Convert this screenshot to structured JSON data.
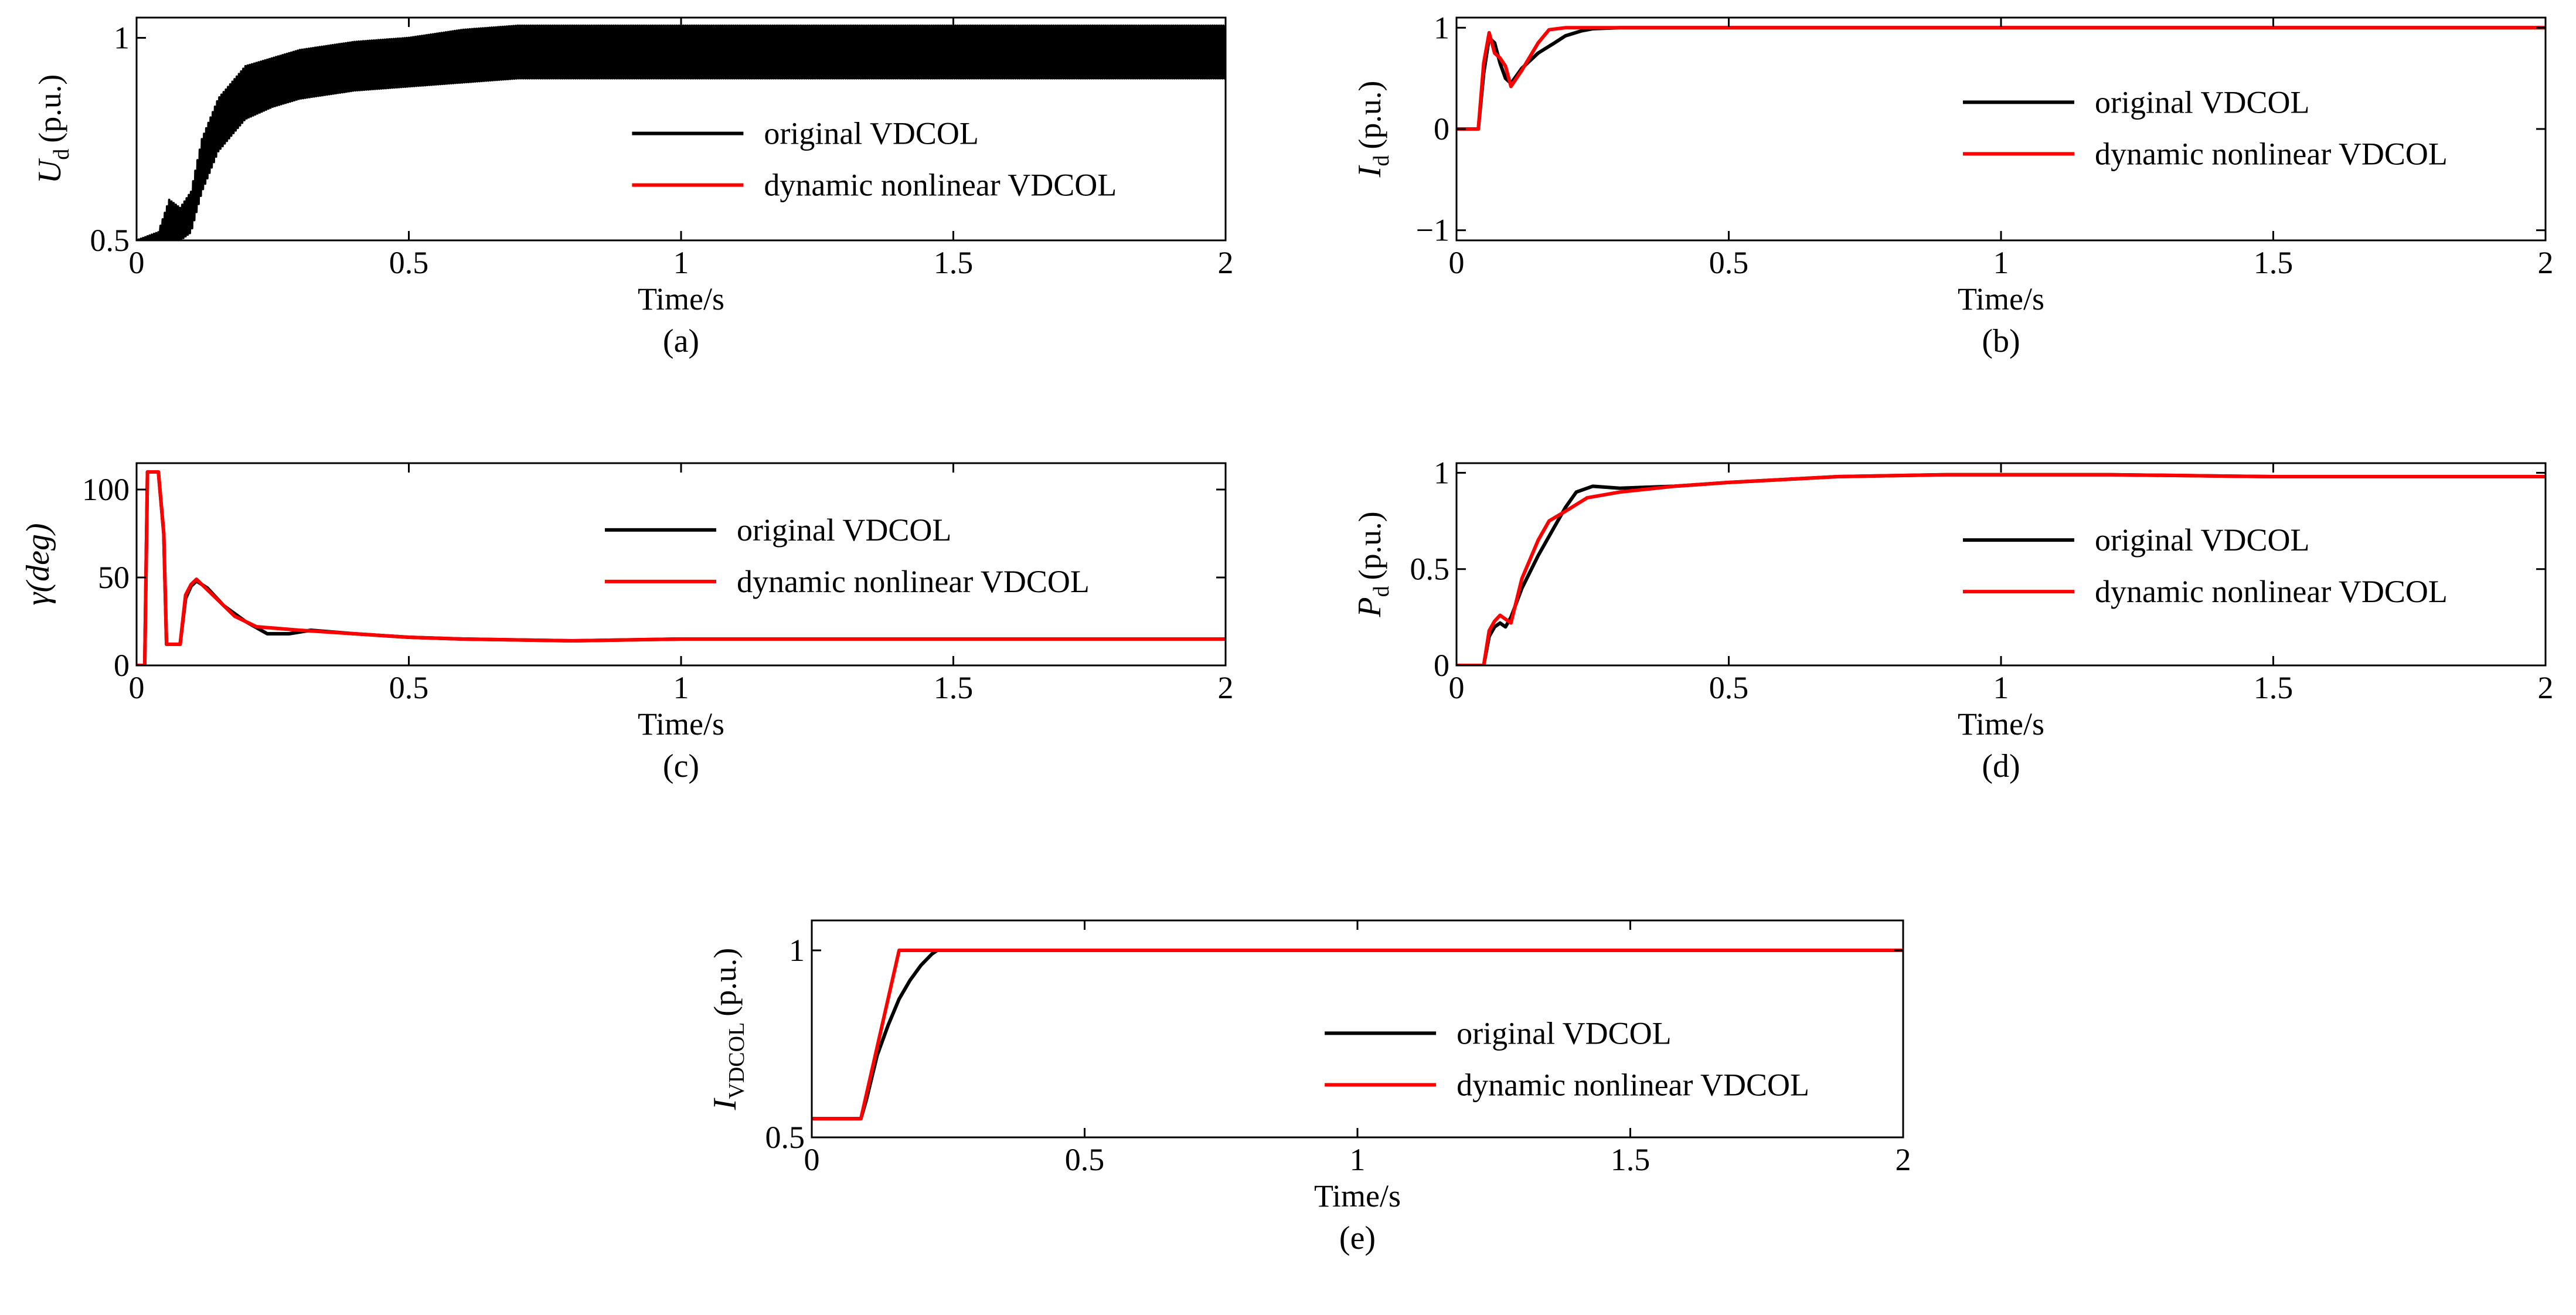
{
  "chart_data": [
    {
      "id": "a",
      "type": "line",
      "caption": "(a)",
      "xlabel": "Time/s",
      "ylabel": {
        "main": "U",
        "sub": "d",
        "unit": "(p.u.)",
        "italic": true
      },
      "xlim": [
        0,
        2
      ],
      "ylim": [
        0.5,
        1.05
      ],
      "xticks": [
        "0",
        "0.5",
        "1",
        "1.5",
        "2"
      ],
      "yticks": [
        {
          "v": 0.5,
          "label": "0.5"
        },
        {
          "v": 1,
          "label": "1"
        }
      ],
      "oscillating": true,
      "legend": {
        "position": "bottom-right",
        "entries": [
          "original VDCOL",
          "dynamic nonlinear VDCOL"
        ]
      },
      "series": [
        {
          "name": "original VDCOL",
          "color": "#000000",
          "x": [
            0,
            0.04,
            0.06,
            0.08,
            0.1,
            0.12,
            0.15,
            0.2,
            0.25,
            0.3,
            0.4,
            0.5,
            0.6,
            0.7,
            0.8,
            1.0,
            1.5,
            2.0
          ],
          "upper": [
            0.5,
            0.52,
            0.6,
            0.58,
            0.62,
            0.75,
            0.85,
            0.93,
            0.95,
            0.97,
            0.99,
            1.0,
            1.02,
            1.03,
            1.03,
            1.03,
            1.03,
            1.03
          ],
          "lower": [
            0.5,
            0.5,
            0.5,
            0.5,
            0.52,
            0.62,
            0.72,
            0.8,
            0.83,
            0.85,
            0.87,
            0.88,
            0.89,
            0.9,
            0.9,
            0.9,
            0.9,
            0.9
          ]
        }
      ]
    },
    {
      "id": "b",
      "type": "line",
      "caption": "(b)",
      "xlabel": "Time/s",
      "ylabel": {
        "main": "I",
        "sub": "d",
        "unit": "(p.u.)",
        "italic": true
      },
      "xlim": [
        0,
        2
      ],
      "ylim": [
        -1.1,
        1.1
      ],
      "xticks": [
        "0",
        "0.5",
        "1",
        "1.5",
        "2"
      ],
      "yticks": [
        {
          "v": -1,
          "label": "−1"
        },
        {
          "v": 0,
          "label": "0"
        },
        {
          "v": 1,
          "label": "1"
        }
      ],
      "legend": {
        "position": "middle-right",
        "entries": [
          "original VDCOL",
          "dynamic nonlinear VDCOL"
        ]
      },
      "series": [
        {
          "name": "original VDCOL",
          "color": "#000000",
          "x": [
            0,
            0.04,
            0.05,
            0.06,
            0.07,
            0.08,
            0.09,
            0.1,
            0.12,
            0.15,
            0.18,
            0.2,
            0.23,
            0.25,
            0.3,
            1.0,
            2.0
          ],
          "y": [
            0,
            0,
            0.55,
            0.9,
            0.85,
            0.65,
            0.5,
            0.45,
            0.6,
            0.75,
            0.85,
            0.92,
            0.97,
            0.99,
            1.0,
            1.0,
            1.0
          ]
        },
        {
          "name": "dynamic nonlinear VDCOL",
          "color": "#ff0000",
          "x": [
            0,
            0.04,
            0.05,
            0.06,
            0.07,
            0.08,
            0.09,
            0.1,
            0.12,
            0.15,
            0.17,
            0.2,
            0.25,
            1.0,
            2.0
          ],
          "y": [
            0,
            0,
            0.65,
            0.95,
            0.75,
            0.7,
            0.62,
            0.42,
            0.58,
            0.85,
            0.98,
            1.0,
            1.0,
            1.0,
            1.0
          ]
        }
      ]
    },
    {
      "id": "c",
      "type": "line",
      "caption": "(c)",
      "xlabel": "Time/s",
      "ylabel": {
        "main": "γ(deg)",
        "sub": "",
        "unit": "",
        "italic": true
      },
      "xlim": [
        0,
        2
      ],
      "ylim": [
        0,
        115
      ],
      "xticks": [
        "0",
        "0.5",
        "1",
        "1.5",
        "2"
      ],
      "yticks": [
        {
          "v": 0,
          "label": "0"
        },
        {
          "v": 50,
          "label": "50"
        },
        {
          "v": 100,
          "label": "100"
        }
      ],
      "legend": {
        "position": "middle-right",
        "entries": [
          "original VDCOL",
          "dynamic nonlinear VDCOL"
        ]
      },
      "series": [
        {
          "name": "original VDCOL",
          "color": "#000000",
          "x": [
            0,
            0.015,
            0.02,
            0.04,
            0.05,
            0.055,
            0.06,
            0.08,
            0.09,
            0.1,
            0.11,
            0.13,
            0.16,
            0.2,
            0.24,
            0.28,
            0.32,
            0.4,
            0.5,
            0.6,
            0.8,
            1.0,
            2.0
          ],
          "y": [
            0,
            0,
            110,
            110,
            75,
            12,
            12,
            12,
            38,
            45,
            48,
            44,
            34,
            25,
            18,
            18,
            20,
            18,
            16,
            15,
            14,
            15,
            15
          ]
        },
        {
          "name": "dynamic nonlinear VDCOL",
          "color": "#ff0000",
          "x": [
            0,
            0.015,
            0.02,
            0.04,
            0.05,
            0.055,
            0.06,
            0.08,
            0.09,
            0.1,
            0.11,
            0.14,
            0.18,
            0.22,
            0.3,
            0.4,
            0.5,
            0.6,
            0.8,
            1.0,
            2.0
          ],
          "y": [
            0,
            0,
            110,
            110,
            75,
            12,
            12,
            12,
            40,
            46,
            49,
            40,
            28,
            22,
            20,
            18,
            16,
            15,
            14,
            15,
            15
          ]
        }
      ]
    },
    {
      "id": "d",
      "type": "line",
      "caption": "(d)",
      "xlabel": "Time/s",
      "ylabel": {
        "main": "P",
        "sub": "d",
        "unit": "(p.u.)",
        "italic": true
      },
      "xlim": [
        0,
        2
      ],
      "ylim": [
        0,
        1.05
      ],
      "xticks": [
        "0",
        "0.5",
        "1",
        "1.5",
        "2"
      ],
      "yticks": [
        {
          "v": 0,
          "label": "0"
        },
        {
          "v": 0.5,
          "label": "0.5"
        },
        {
          "v": 1,
          "label": "1"
        }
      ],
      "legend": {
        "position": "middle-right",
        "entries": [
          "original VDCOL",
          "dynamic nonlinear VDCOL"
        ]
      },
      "series": [
        {
          "name": "original VDCOL",
          "color": "#000000",
          "x": [
            0,
            0.05,
            0.06,
            0.07,
            0.08,
            0.09,
            0.1,
            0.12,
            0.15,
            0.18,
            0.2,
            0.22,
            0.25,
            0.3,
            0.4,
            0.5,
            0.7,
            0.9,
            1.2,
            1.5,
            2.0
          ],
          "y": [
            0,
            0,
            0.15,
            0.2,
            0.22,
            0.2,
            0.25,
            0.4,
            0.57,
            0.72,
            0.82,
            0.9,
            0.93,
            0.92,
            0.93,
            0.95,
            0.98,
            0.99,
            0.99,
            0.98,
            0.98
          ]
        },
        {
          "name": "dynamic nonlinear VDCOL",
          "color": "#ff0000",
          "x": [
            0,
            0.05,
            0.06,
            0.07,
            0.08,
            0.09,
            0.1,
            0.12,
            0.15,
            0.17,
            0.2,
            0.24,
            0.3,
            0.4,
            0.5,
            0.7,
            0.9,
            1.2,
            1.5,
            2.0
          ],
          "y": [
            0,
            0,
            0.18,
            0.23,
            0.26,
            0.24,
            0.22,
            0.45,
            0.65,
            0.75,
            0.8,
            0.87,
            0.9,
            0.93,
            0.95,
            0.98,
            0.99,
            0.99,
            0.98,
            0.98
          ]
        }
      ]
    },
    {
      "id": "e",
      "type": "line",
      "caption": "(e)",
      "xlabel": "Time/s",
      "ylabel": {
        "main": "I",
        "sub": "VDCOL",
        "unit": "(p.u.)",
        "italic": true
      },
      "xlim": [
        0,
        2
      ],
      "ylim": [
        0.5,
        1.08
      ],
      "xticks": [
        "0",
        "0.5",
        "1",
        "1.5",
        "2"
      ],
      "yticks": [
        {
          "v": 0.5,
          "label": "0.5"
        },
        {
          "v": 1,
          "label": "1"
        }
      ],
      "legend": {
        "position": "bottom-right",
        "entries": [
          "original VDCOL",
          "dynamic nonlinear VDCOL"
        ]
      },
      "series": [
        {
          "name": "original VDCOL",
          "color": "#000000",
          "x": [
            0,
            0.09,
            0.1,
            0.12,
            0.14,
            0.16,
            0.18,
            0.2,
            0.22,
            0.23,
            2.0
          ],
          "y": [
            0.55,
            0.55,
            0.6,
            0.72,
            0.8,
            0.87,
            0.92,
            0.96,
            0.99,
            1.0,
            1.0
          ]
        },
        {
          "name": "dynamic nonlinear VDCOL",
          "color": "#ff0000",
          "x": [
            0,
            0.09,
            0.16,
            2.0
          ],
          "y": [
            0.55,
            0.55,
            1.0,
            1.0
          ]
        }
      ]
    }
  ]
}
